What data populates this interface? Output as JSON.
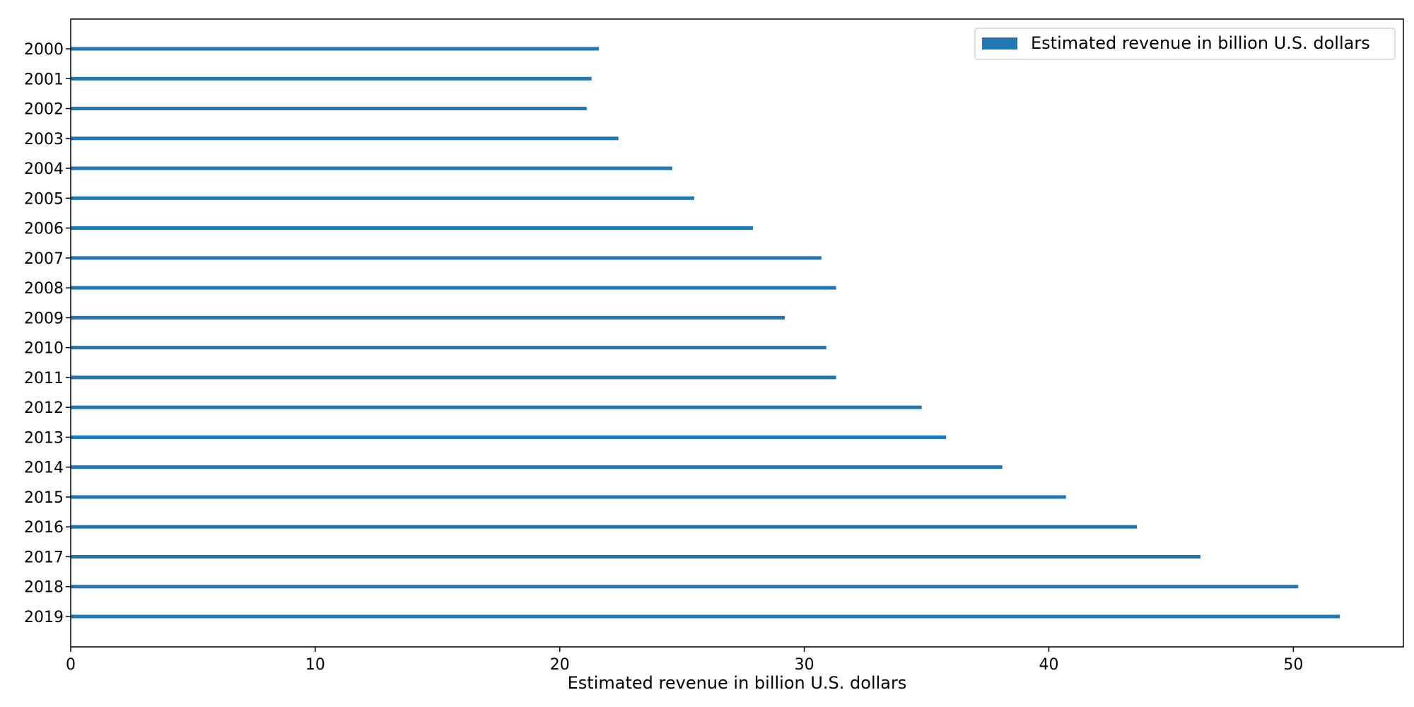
{
  "chart_data": {
    "type": "bar",
    "orientation": "horizontal",
    "categories": [
      "2000",
      "2001",
      "2002",
      "2003",
      "2004",
      "2005",
      "2006",
      "2007",
      "2008",
      "2009",
      "2010",
      "2011",
      "2012",
      "2013",
      "2014",
      "2015",
      "2016",
      "2017",
      "2018",
      "2019"
    ],
    "series": [
      {
        "name": "Estimated revenue in billion U.S. dollars",
        "color": "#1f77b4",
        "values": [
          21.6,
          21.3,
          21.1,
          22.4,
          24.6,
          25.5,
          27.9,
          30.7,
          31.3,
          29.2,
          30.9,
          31.3,
          34.8,
          35.8,
          38.1,
          40.7,
          43.6,
          46.2,
          50.2,
          51.9
        ]
      }
    ],
    "xlabel": "Estimated revenue in billion U.S. dollars",
    "ylabel": "",
    "title": "",
    "xlim": [
      0,
      54.5
    ],
    "xticks": [
      0,
      10,
      20,
      30,
      40,
      50
    ],
    "grid": false,
    "legend_position": "top-right",
    "category_order": "top-to-bottom"
  }
}
